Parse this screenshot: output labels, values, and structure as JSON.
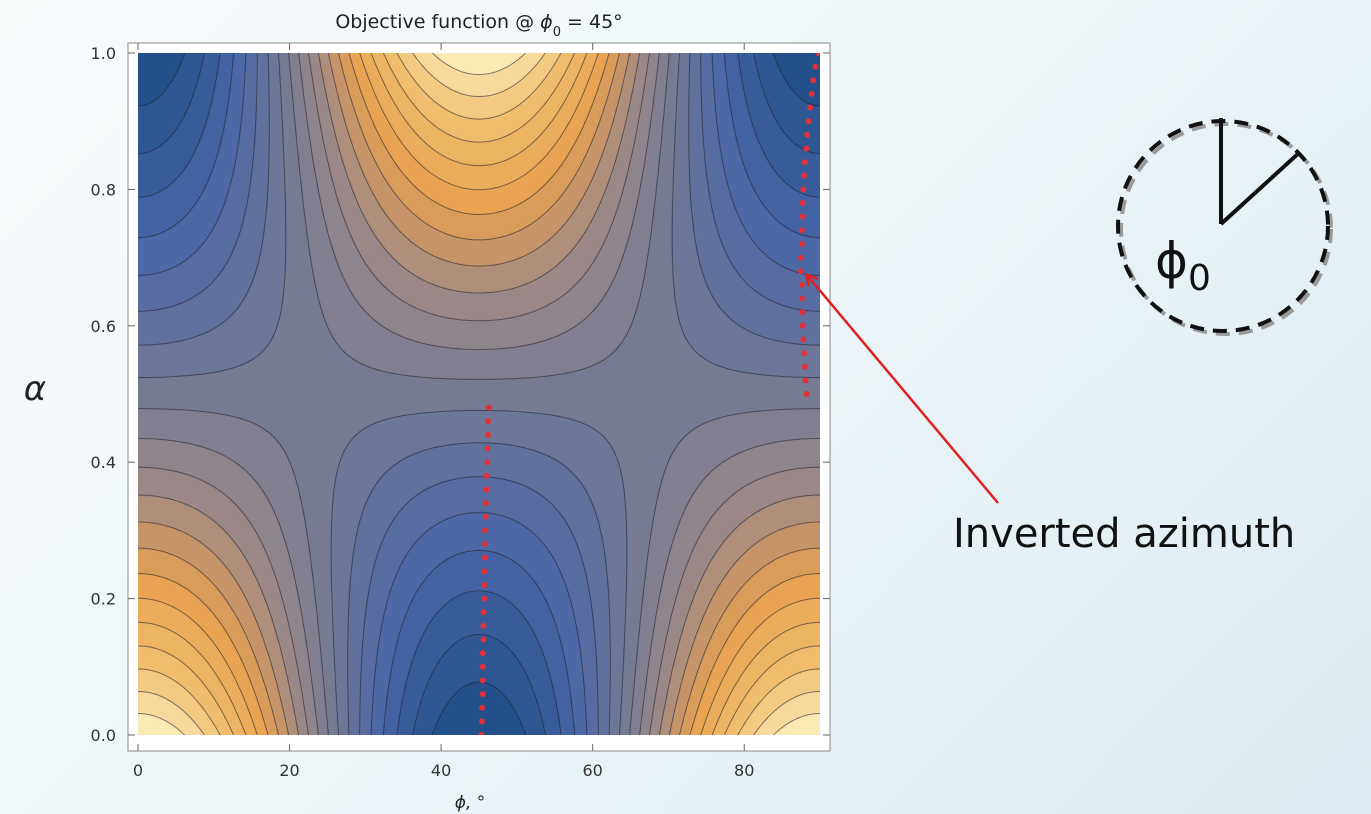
{
  "chart_data": {
    "type": "contour",
    "title_prefix": "Objective function @ ",
    "title_symbol": "ϕ",
    "title_subscript": "0",
    "title_suffix": " = 45°",
    "xlabel": "ϕ, °",
    "ylabel": "α",
    "xlim": [
      0,
      90
    ],
    "ylim": [
      0,
      1
    ],
    "x_ticks": [
      0,
      20,
      40,
      60,
      80
    ],
    "y_ticks": [
      0.0,
      0.2,
      0.4,
      0.6,
      0.8,
      1.0
    ],
    "y_tick_labels": [
      "0.0",
      "0.2",
      "0.4",
      "0.6",
      "0.8",
      "1.0"
    ],
    "grid": false,
    "colormap": [
      "#fff8d0",
      "#f0c070",
      "#e8a050",
      "#9a8888",
      "#6e7896",
      "#4a66a8",
      "#23508a"
    ],
    "inverted_points": [
      {
        "phi": 45.3,
        "alpha": 0.0
      },
      {
        "phi": 45.4,
        "alpha": 0.02
      },
      {
        "phi": 45.4,
        "alpha": 0.04
      },
      {
        "phi": 45.5,
        "alpha": 0.06
      },
      {
        "phi": 45.5,
        "alpha": 0.08
      },
      {
        "phi": 45.5,
        "alpha": 0.1
      },
      {
        "phi": 45.5,
        "alpha": 0.12
      },
      {
        "phi": 45.6,
        "alpha": 0.14
      },
      {
        "phi": 45.6,
        "alpha": 0.16
      },
      {
        "phi": 45.6,
        "alpha": 0.18
      },
      {
        "phi": 45.7,
        "alpha": 0.2
      },
      {
        "phi": 45.7,
        "alpha": 0.22
      },
      {
        "phi": 45.7,
        "alpha": 0.24
      },
      {
        "phi": 45.8,
        "alpha": 0.26
      },
      {
        "phi": 45.8,
        "alpha": 0.28
      },
      {
        "phi": 45.8,
        "alpha": 0.3
      },
      {
        "phi": 45.9,
        "alpha": 0.32
      },
      {
        "phi": 45.9,
        "alpha": 0.34
      },
      {
        "phi": 46.0,
        "alpha": 0.36
      },
      {
        "phi": 46.0,
        "alpha": 0.38
      },
      {
        "phi": 46.1,
        "alpha": 0.4
      },
      {
        "phi": 46.1,
        "alpha": 0.42
      },
      {
        "phi": 46.2,
        "alpha": 0.44
      },
      {
        "phi": 46.2,
        "alpha": 0.46
      },
      {
        "phi": 46.3,
        "alpha": 0.48
      },
      {
        "phi": 88.2,
        "alpha": 0.5
      },
      {
        "phi": 88.1,
        "alpha": 0.52
      },
      {
        "phi": 88.0,
        "alpha": 0.54
      },
      {
        "phi": 87.9,
        "alpha": 0.56
      },
      {
        "phi": 87.8,
        "alpha": 0.58
      },
      {
        "phi": 87.7,
        "alpha": 0.6
      },
      {
        "phi": 87.7,
        "alpha": 0.62
      },
      {
        "phi": 87.6,
        "alpha": 0.64
      },
      {
        "phi": 87.6,
        "alpha": 0.66
      },
      {
        "phi": 87.5,
        "alpha": 0.68
      },
      {
        "phi": 87.5,
        "alpha": 0.7
      },
      {
        "phi": 87.6,
        "alpha": 0.72
      },
      {
        "phi": 87.6,
        "alpha": 0.74
      },
      {
        "phi": 87.7,
        "alpha": 0.76
      },
      {
        "phi": 87.7,
        "alpha": 0.78
      },
      {
        "phi": 87.8,
        "alpha": 0.8
      },
      {
        "phi": 87.9,
        "alpha": 0.82
      },
      {
        "phi": 88.0,
        "alpha": 0.84
      },
      {
        "phi": 88.2,
        "alpha": 0.86
      },
      {
        "phi": 88.3,
        "alpha": 0.88
      },
      {
        "phi": 88.5,
        "alpha": 0.9
      },
      {
        "phi": 88.7,
        "alpha": 0.92
      },
      {
        "phi": 88.9,
        "alpha": 0.94
      },
      {
        "phi": 89.1,
        "alpha": 0.96
      },
      {
        "phi": 89.4,
        "alpha": 0.98
      },
      {
        "phi": 89.8,
        "alpha": 1.0
      }
    ],
    "point_color": "#e0303a",
    "annotation": {
      "text": "Inverted azimuth",
      "target": {
        "phi": 87.5,
        "alpha": 0.68
      },
      "color": "#e02020"
    }
  },
  "inset": {
    "symbol": "ϕ",
    "subscript": "0"
  }
}
